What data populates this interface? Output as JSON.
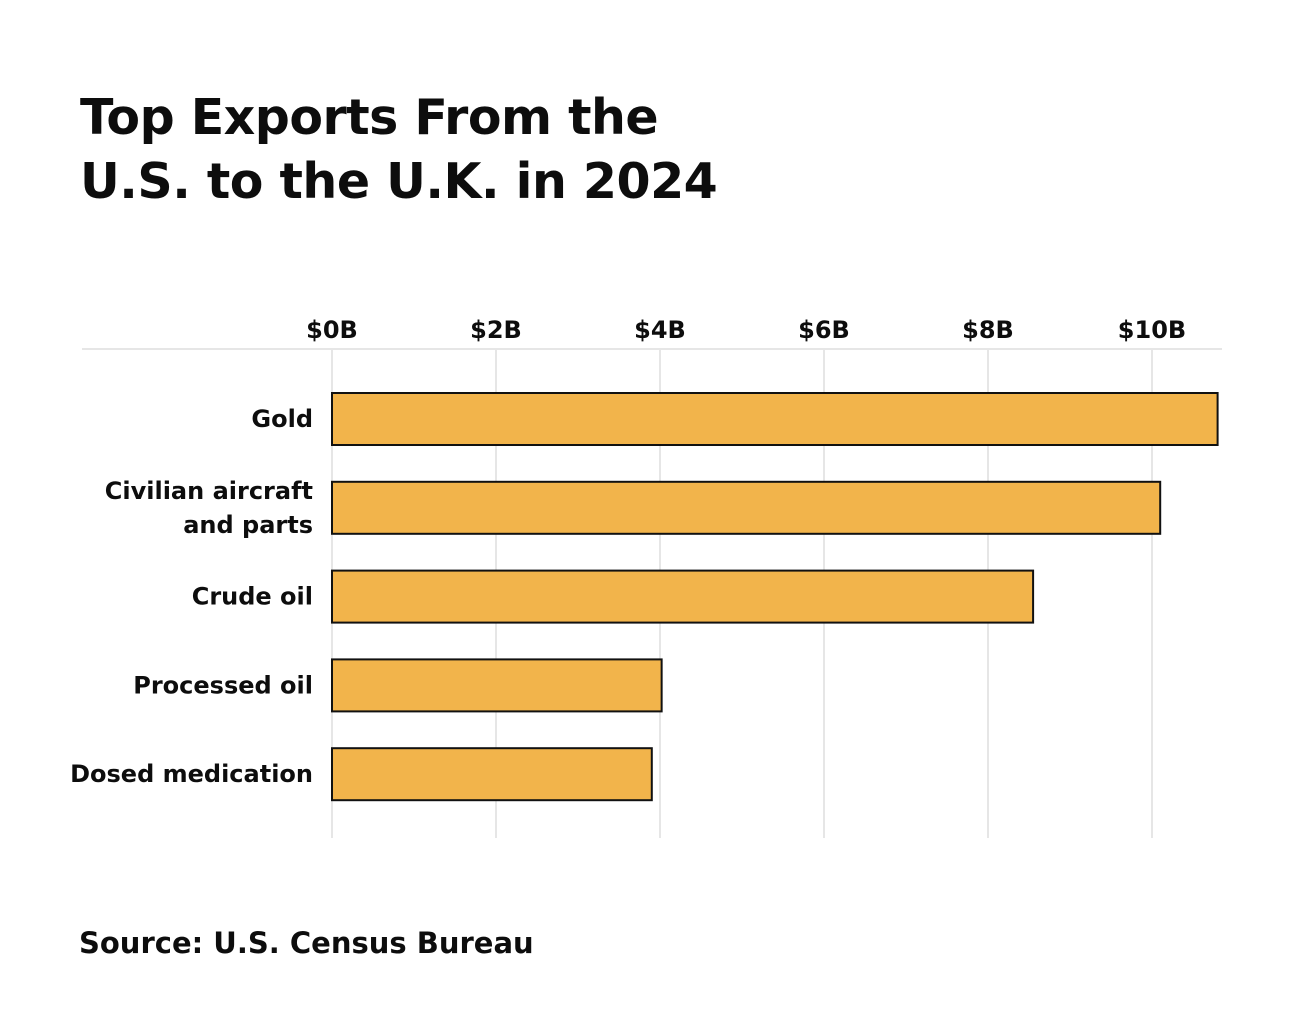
{
  "title_lines": [
    "Top Exports From the",
    "U.S. to the U.K. in 2024"
  ],
  "source": "Source: U.S. Census Bureau",
  "chart_data": {
    "type": "bar",
    "orientation": "horizontal",
    "title": "Top Exports From the U.S. to the U.K. in 2024",
    "categories": [
      [
        "Gold"
      ],
      [
        "Civilian aircraft",
        "and parts"
      ],
      [
        "Crude oil"
      ],
      [
        "Processed oil"
      ],
      [
        "Dosed medication"
      ]
    ],
    "values": [
      10.8,
      10.1,
      8.55,
      4.02,
      3.9
    ],
    "unit": "billion USD",
    "xlim": [
      0,
      10.8
    ],
    "xticks": [
      0,
      2,
      4,
      6,
      8,
      10
    ],
    "xtick_labels": [
      "$0B",
      "$2B",
      "$4B",
      "$6B",
      "$8B",
      "$10B"
    ],
    "axis_position": "top",
    "grid": true,
    "bar_color": "#f2b44b",
    "bar_outline_color": "#111111",
    "grid_color": "#e6e6e6"
  }
}
